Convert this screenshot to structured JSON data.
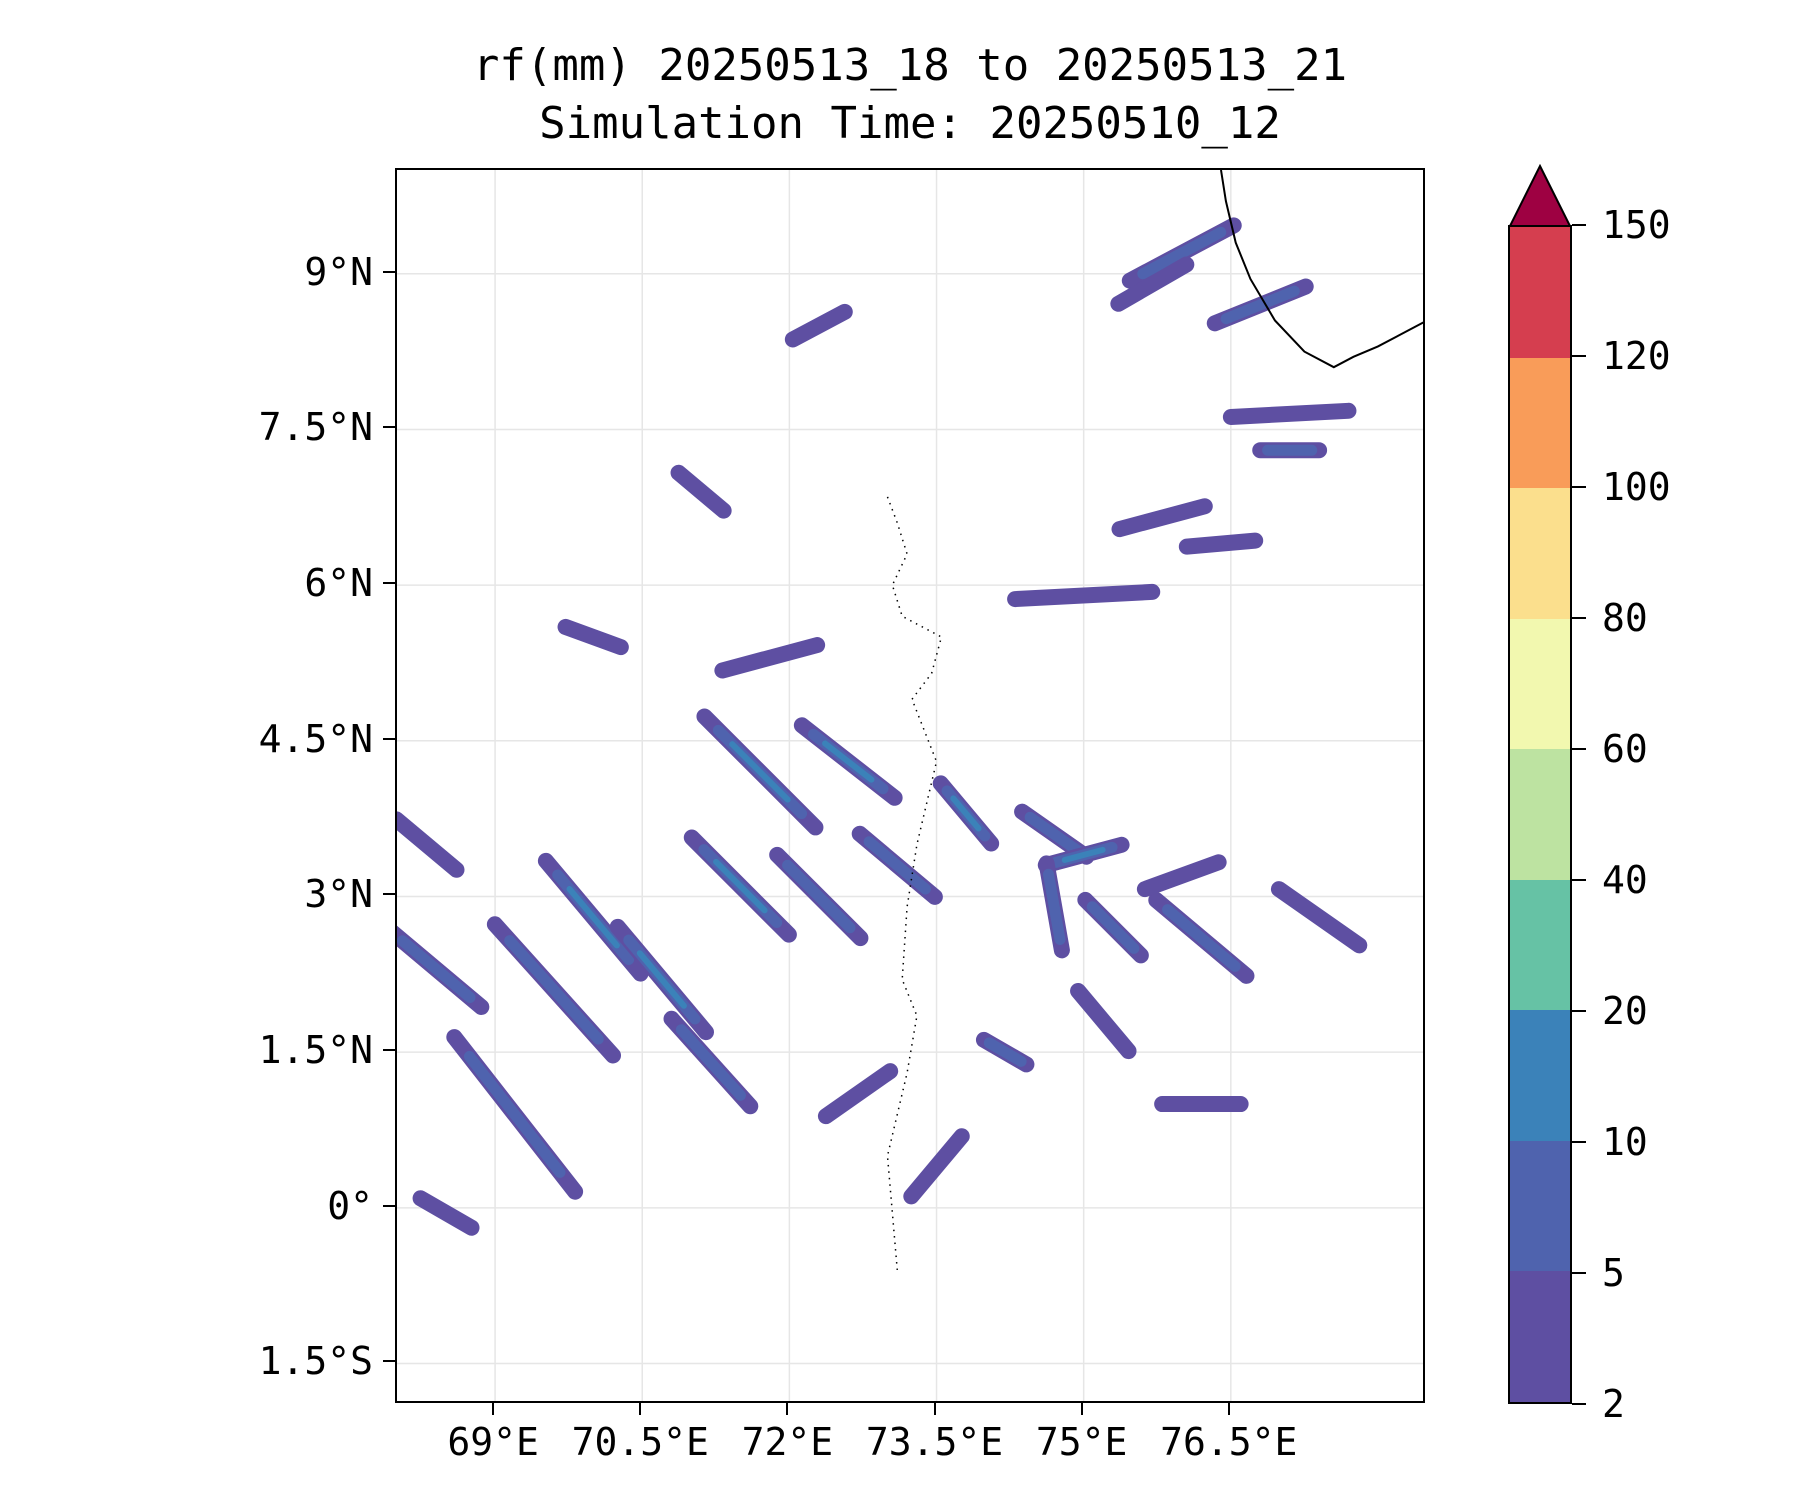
{
  "title_line1": "rf(mm) 20250513_18 to 20250513_21",
  "title_line2": "Simulation Time: 20250510_12",
  "map": {
    "lon_range": [
      68.0,
      78.5
    ],
    "lat_range": [
      -1.9,
      10.0
    ],
    "lat_ticks": [
      {
        "value": 9.0,
        "label": "9°N"
      },
      {
        "value": 7.5,
        "label": "7.5°N"
      },
      {
        "value": 6.0,
        "label": "6°N"
      },
      {
        "value": 4.5,
        "label": "4.5°N"
      },
      {
        "value": 3.0,
        "label": "3°N"
      },
      {
        "value": 1.5,
        "label": "1.5°N"
      },
      {
        "value": 0.0,
        "label": "0°"
      },
      {
        "value": -1.5,
        "label": "1.5°S"
      }
    ],
    "lon_ticks": [
      {
        "value": 69.0,
        "label": "69°E"
      },
      {
        "value": 70.5,
        "label": "70.5°E"
      },
      {
        "value": 72.0,
        "label": "72°E"
      },
      {
        "value": 73.5,
        "label": "73.5°E"
      },
      {
        "value": 75.0,
        "label": "75°E"
      },
      {
        "value": 76.5,
        "label": "76.5°E"
      }
    ],
    "grid": true,
    "coastline": [
      [
        76.4,
        10.0
      ],
      [
        76.45,
        9.7
      ],
      [
        76.55,
        9.3
      ],
      [
        76.7,
        8.95
      ],
      [
        76.95,
        8.55
      ],
      [
        77.25,
        8.25
      ],
      [
        77.55,
        8.1
      ],
      [
        77.75,
        8.2
      ],
      [
        78.0,
        8.3
      ],
      [
        78.3,
        8.45
      ],
      [
        78.5,
        8.55
      ]
    ],
    "islands": [
      [
        73.0,
        6.85
      ],
      [
        73.1,
        6.6
      ],
      [
        73.2,
        6.3
      ],
      [
        73.05,
        6.0
      ],
      [
        73.15,
        5.7
      ],
      [
        73.55,
        5.5
      ],
      [
        73.45,
        5.15
      ],
      [
        73.25,
        4.9
      ],
      [
        73.5,
        4.3
      ],
      [
        73.4,
        3.9
      ],
      [
        73.3,
        3.5
      ],
      [
        73.2,
        2.9
      ],
      [
        73.15,
        2.2
      ],
      [
        73.3,
        1.85
      ],
      [
        73.2,
        1.3
      ],
      [
        73.0,
        0.5
      ],
      [
        73.1,
        -0.6
      ]
    ]
  },
  "rain_bands": [
    {
      "lon": 76.0,
      "lat": 9.2,
      "angle": -28,
      "length": 1.2,
      "level": 1
    },
    {
      "lon": 76.8,
      "lat": 8.7,
      "angle": -22,
      "length": 1.0,
      "level": 1
    },
    {
      "lon": 75.7,
      "lat": 8.9,
      "angle": -30,
      "length": 0.8,
      "level": 0
    },
    {
      "lon": 72.3,
      "lat": 8.5,
      "angle": -28,
      "length": 0.6,
      "level": 0
    },
    {
      "lon": 77.1,
      "lat": 7.65,
      "angle": -3,
      "length": 1.2,
      "level": 0
    },
    {
      "lon": 77.1,
      "lat": 7.3,
      "angle": 0,
      "length": 0.6,
      "level": 1
    },
    {
      "lon": 75.8,
      "lat": 6.65,
      "angle": -15,
      "length": 0.9,
      "level": 0
    },
    {
      "lon": 76.4,
      "lat": 6.4,
      "angle": -5,
      "length": 0.7,
      "level": 0
    },
    {
      "lon": 75.0,
      "lat": 5.9,
      "angle": -3,
      "length": 1.4,
      "level": 0
    },
    {
      "lon": 71.1,
      "lat": 6.9,
      "angle": 40,
      "length": 0.6,
      "level": 0
    },
    {
      "lon": 71.8,
      "lat": 5.3,
      "angle": -15,
      "length": 1.0,
      "level": 0
    },
    {
      "lon": 71.7,
      "lat": 4.2,
      "angle": 45,
      "length": 1.6,
      "level": 2
    },
    {
      "lon": 72.6,
      "lat": 4.3,
      "angle": 38,
      "length": 1.2,
      "level": 2
    },
    {
      "lon": 71.5,
      "lat": 3.1,
      "angle": 45,
      "length": 1.4,
      "level": 2
    },
    {
      "lon": 72.3,
      "lat": 3.0,
      "angle": 45,
      "length": 1.2,
      "level": 1
    },
    {
      "lon": 73.1,
      "lat": 3.3,
      "angle": 40,
      "length": 1.0,
      "level": 1
    },
    {
      "lon": 70.0,
      "lat": 2.8,
      "angle": 50,
      "length": 1.5,
      "level": 2
    },
    {
      "lon": 69.6,
      "lat": 2.1,
      "angle": 48,
      "length": 1.8,
      "level": 1
    },
    {
      "lon": 70.7,
      "lat": 2.2,
      "angle": 50,
      "length": 1.4,
      "level": 2
    },
    {
      "lon": 71.2,
      "lat": 1.4,
      "angle": 48,
      "length": 1.2,
      "level": 1
    },
    {
      "lon": 69.2,
      "lat": 0.9,
      "angle": 52,
      "length": 2.0,
      "level": 1
    },
    {
      "lon": 68.4,
      "lat": 2.3,
      "angle": 40,
      "length": 1.2,
      "level": 1
    },
    {
      "lon": 68.3,
      "lat": 3.5,
      "angle": 40,
      "length": 0.8,
      "level": 0
    },
    {
      "lon": 73.5,
      "lat": 0.4,
      "angle": -50,
      "length": 0.8,
      "level": 0
    },
    {
      "lon": 72.7,
      "lat": 1.1,
      "angle": -35,
      "length": 0.8,
      "level": 0
    },
    {
      "lon": 73.8,
      "lat": 3.8,
      "angle": 50,
      "length": 0.8,
      "level": 2
    },
    {
      "lon": 74.7,
      "lat": 3.6,
      "angle": 35,
      "length": 0.8,
      "level": 1
    },
    {
      "lon": 75.0,
      "lat": 3.4,
      "angle": -15,
      "length": 0.8,
      "level": 2
    },
    {
      "lon": 75.3,
      "lat": 2.7,
      "angle": 45,
      "length": 0.8,
      "level": 1
    },
    {
      "lon": 74.7,
      "lat": 2.9,
      "angle": 80,
      "length": 0.9,
      "level": 1
    },
    {
      "lon": 76.2,
      "lat": 2.6,
      "angle": 40,
      "length": 1.2,
      "level": 1
    },
    {
      "lon": 77.4,
      "lat": 2.8,
      "angle": 35,
      "length": 1.0,
      "level": 0
    },
    {
      "lon": 76.2,
      "lat": 1.0,
      "angle": 0,
      "length": 0.8,
      "level": 0
    },
    {
      "lon": 75.2,
      "lat": 1.8,
      "angle": 50,
      "length": 0.8,
      "level": 0
    },
    {
      "lon": 68.5,
      "lat": -0.05,
      "angle": 30,
      "length": 0.6,
      "level": 0
    },
    {
      "lon": 74.2,
      "lat": 1.5,
      "angle": 30,
      "length": 0.5,
      "level": 1
    },
    {
      "lon": 76.0,
      "lat": 3.2,
      "angle": -20,
      "length": 0.8,
      "level": 0
    },
    {
      "lon": 70.0,
      "lat": 5.5,
      "angle": 20,
      "length": 0.6,
      "level": 0
    }
  ],
  "colorbar": {
    "levels": [
      2,
      5,
      10,
      20,
      40,
      60,
      80,
      100,
      120,
      150
    ],
    "colors": [
      "#5e4fa2",
      "#4f63ae",
      "#3b82b9",
      "#66c2a5",
      "#bde3a1",
      "#f2f8af",
      "#fbdf8d",
      "#f99c59",
      "#d53e4f"
    ],
    "extend_color": "#9e0142",
    "extend": "max"
  }
}
